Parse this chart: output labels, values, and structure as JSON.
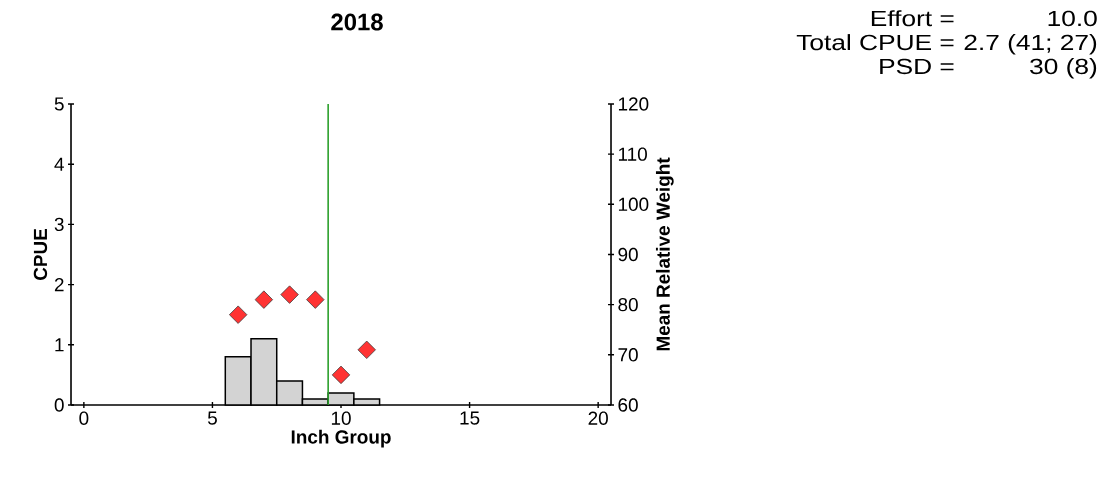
{
  "chart_data": {
    "type": "histogram",
    "title": "2018",
    "xlabel": "Inch Group",
    "ylabel": "CPUE",
    "y2label": "Mean Relative Weight",
    "annotations": [
      "Effort =",
      "10.0",
      "Total CPUE =",
      "2.7 (41; 27)",
      "PSD =",
      "30 (8)"
    ],
    "series": [
      {
        "bins": [
          5.5,
          6.5,
          7.5,
          8.5,
          9.5,
          10.5,
          11.5
        ],
        "values": [
          0.8,
          1.1,
          0.4,
          0.1,
          0.2,
          0.1
        ],
        "color": "#d3d3d3"
      },
      {
        "type": "scatter",
        "axis": "y2",
        "x": [
          6,
          7,
          8,
          9,
          10,
          11
        ],
        "values": [
          78,
          81,
          82,
          81,
          66,
          71
        ],
        "color": "#ff3333",
        "marker": "diamond"
      }
    ],
    "xlim": [
      -0.5,
      20.5
    ],
    "xticks": [
      0,
      5,
      10,
      15,
      20
    ],
    "ylim": [
      0,
      5
    ],
    "yticks": [
      0,
      1,
      2,
      3,
      4,
      5
    ],
    "y2lim": [
      60,
      120
    ],
    "y2ticks": [
      60,
      70,
      80,
      90,
      100,
      110,
      120
    ],
    "ref_lines": [
      {
        "axis": "x",
        "value": 9.5,
        "color": "#2ca02c"
      }
    ]
  }
}
